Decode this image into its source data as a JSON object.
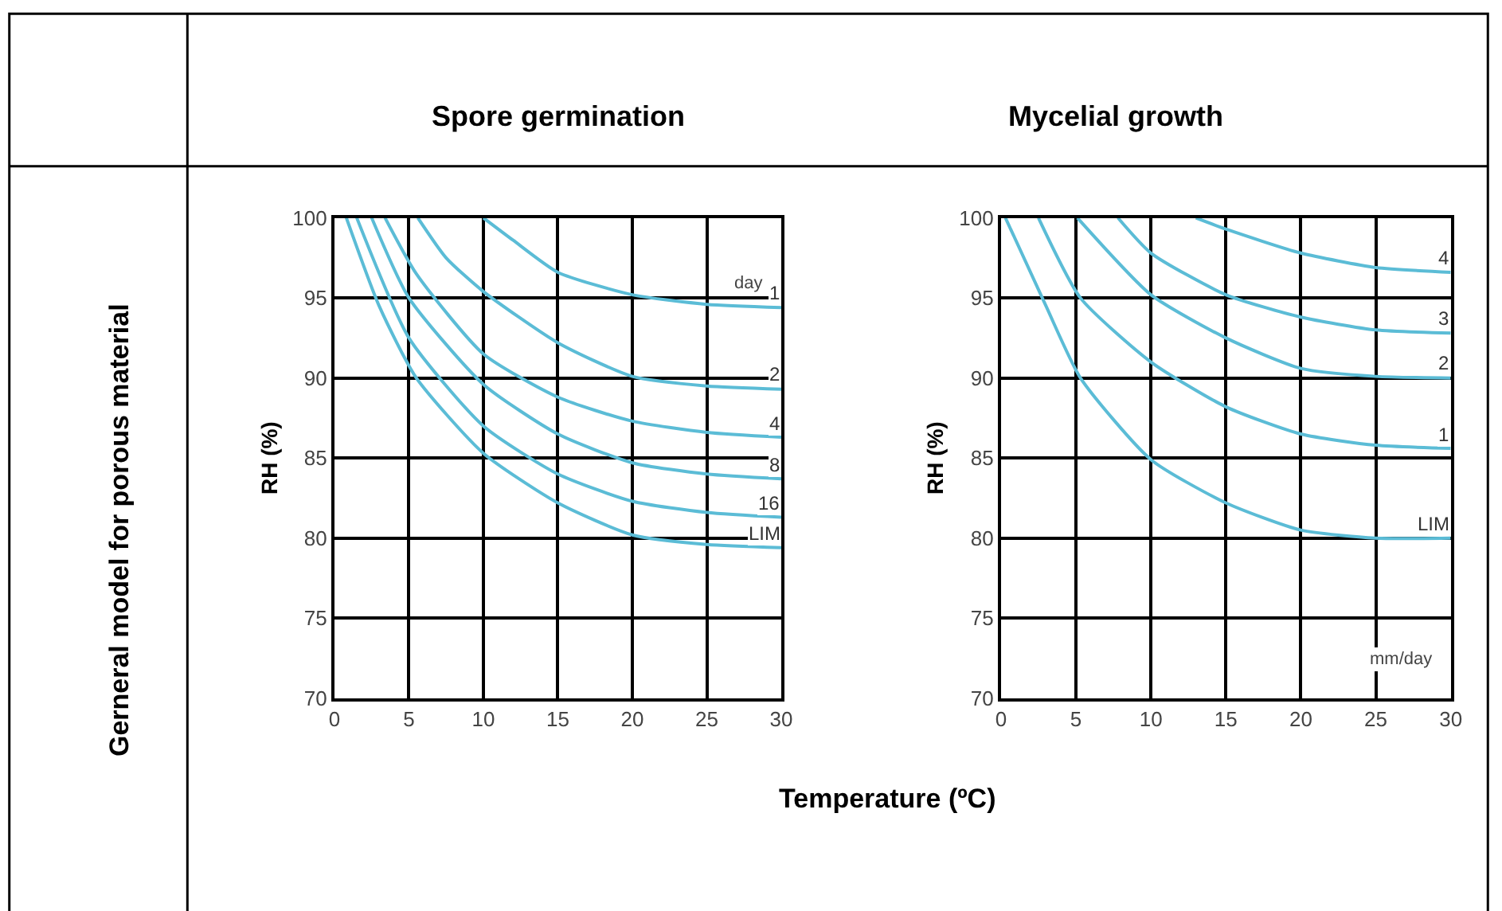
{
  "chart_data": [
    {
      "type": "line",
      "title": "Spore germination",
      "ylabel": "RH (%)",
      "xlim": [
        0,
        30
      ],
      "xticks": [
        0,
        5,
        10,
        15,
        20,
        25,
        30
      ],
      "ylim": [
        70,
        100
      ],
      "yticks": [
        70,
        75,
        80,
        85,
        90,
        95,
        100
      ],
      "grid": true,
      "legend": false,
      "marker": "none",
      "line_style": "solid",
      "annotations": [
        "Gerneral model for porous material",
        "day"
      ],
      "series": [
        {
          "name": "1",
          "color": "#5bbcd6",
          "x": [
            10,
            12,
            15,
            20,
            25,
            30
          ],
          "values": [
            100,
            98.6,
            96.6,
            95.2,
            94.6,
            94.4
          ]
        },
        {
          "name": "2",
          "color": "#5bbcd6",
          "x": [
            5.6,
            7.5,
            10,
            15,
            20,
            25,
            30
          ],
          "values": [
            100,
            97.5,
            95.4,
            92.2,
            90.1,
            89.5,
            89.3
          ]
        },
        {
          "name": "4",
          "color": "#5bbcd6",
          "x": [
            3.4,
            5.5,
            10,
            15,
            20,
            25,
            30
          ],
          "values": [
            100,
            96.5,
            91.5,
            88.8,
            87.3,
            86.6,
            86.3
          ]
        },
        {
          "name": "8",
          "color": "#5bbcd6",
          "x": [
            2.5,
            5,
            10,
            15,
            20,
            25,
            30
          ],
          "values": [
            100,
            95,
            89.6,
            86.5,
            84.7,
            84,
            83.7
          ]
        },
        {
          "name": "16",
          "color": "#5bbcd6",
          "x": [
            1.5,
            5,
            10,
            15,
            20,
            25,
            30
          ],
          "values": [
            100,
            92.5,
            87,
            84,
            82.3,
            81.6,
            81.3
          ]
        },
        {
          "name": "LIM",
          "color": "#5bbcd6",
          "x": [
            0.8,
            3,
            5.5,
            10,
            15,
            20,
            25,
            30
          ],
          "values": [
            100,
            94.5,
            90,
            85.3,
            82.2,
            80.2,
            79.6,
            79.4
          ]
        }
      ]
    },
    {
      "type": "line",
      "title": "Mycelial growth",
      "ylabel": "RH (%)",
      "xlabel": "Temperature (ºC)",
      "xlim": [
        0,
        30
      ],
      "xticks": [
        0,
        5,
        10,
        15,
        20,
        25,
        30
      ],
      "ylim": [
        70,
        100
      ],
      "yticks": [
        70,
        75,
        80,
        85,
        90,
        95,
        100
      ],
      "grid": true,
      "legend": false,
      "marker": "none",
      "line_style": "solid",
      "annotations": [
        "mm/day"
      ],
      "series": [
        {
          "name": "4",
          "color": "#5bbcd6",
          "x": [
            13,
            15,
            20,
            25,
            30
          ],
          "values": [
            100,
            99.3,
            97.8,
            96.9,
            96.6
          ]
        },
        {
          "name": "3",
          "color": "#5bbcd6",
          "x": [
            7.8,
            10,
            15,
            20,
            25,
            30
          ],
          "values": [
            100,
            97.8,
            95.2,
            93.8,
            93,
            92.8
          ]
        },
        {
          "name": "2",
          "color": "#5bbcd6",
          "x": [
            5.1,
            10,
            15,
            20,
            25,
            30
          ],
          "values": [
            100,
            95.2,
            92.5,
            90.6,
            90.1,
            90
          ]
        },
        {
          "name": "1",
          "color": "#5bbcd6",
          "x": [
            2.5,
            5.3,
            10,
            15,
            20,
            25,
            30
          ],
          "values": [
            100,
            95,
            91,
            88.2,
            86.5,
            85.8,
            85.6
          ]
        },
        {
          "name": "LIM",
          "color": "#5bbcd6",
          "x": [
            0.3,
            3,
            5.3,
            10,
            15,
            20,
            25,
            30
          ],
          "values": [
            100,
            94.5,
            90,
            84.9,
            82.2,
            80.5,
            80,
            80
          ]
        }
      ]
    }
  ]
}
